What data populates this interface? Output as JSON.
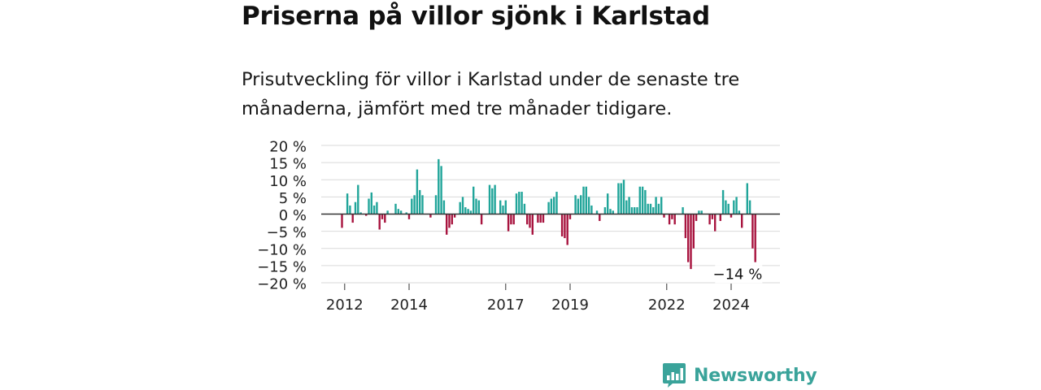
{
  "header": {
    "title": "Priserna på villor sjönk i Karlstad",
    "subtitle": "Prisutveckling för villor i Karlstad under de senaste tre månaderna, jämfört med tre månader tidigare."
  },
  "brand": {
    "name": "Newsworthy",
    "icon": "newsworthy-logo-icon",
    "color": "#3aa39a"
  },
  "colors": {
    "positive": "#21a59a",
    "negative": "#a8143f",
    "zero_line": "#333333",
    "grid": "#d9d9d9"
  },
  "chart_data": {
    "type": "bar",
    "unit": "%",
    "ylim": [
      -20,
      20
    ],
    "y_ticks": [
      {
        "value": 20,
        "label": "20 %"
      },
      {
        "value": 15,
        "label": "15 %"
      },
      {
        "value": 10,
        "label": "10 %"
      },
      {
        "value": 5,
        "label": "5 %"
      },
      {
        "value": 0,
        "label": "0 %"
      },
      {
        "value": -5,
        "label": "−5 %"
      },
      {
        "value": -10,
        "label": "−10 %"
      },
      {
        "value": -15,
        "label": "−15 %"
      },
      {
        "value": -20,
        "label": "−20 %"
      }
    ],
    "x_ticks": [
      {
        "index": 1,
        "label": "2012"
      },
      {
        "index": 25,
        "label": "2014"
      },
      {
        "index": 61,
        "label": "2017"
      },
      {
        "index": 85,
        "label": "2019"
      },
      {
        "index": 121,
        "label": "2022"
      },
      {
        "index": 145,
        "label": "2024"
      }
    ],
    "grid": true,
    "annotation": {
      "index": 156,
      "label": "−14 %"
    },
    "values": [
      -4,
      0,
      6,
      2.5,
      -2.5,
      3.5,
      8.5,
      0.5,
      0,
      -0.5,
      4.5,
      6.3,
      2.5,
      3.5,
      -4.5,
      -1.5,
      -2.5,
      1,
      0,
      0,
      3,
      1.5,
      1,
      0,
      0.5,
      -1.5,
      4.5,
      5.5,
      13,
      7,
      5.5,
      0,
      0,
      -1,
      0,
      5.5,
      16,
      14,
      4,
      -6,
      -4,
      -3,
      -1,
      0,
      3.5,
      5,
      2,
      1.5,
      1,
      8,
      4.5,
      4,
      -3,
      0,
      0,
      8.5,
      7.5,
      8.5,
      0,
      4,
      2.5,
      4,
      -5,
      -3,
      -3,
      6,
      6.5,
      6.5,
      3,
      -3,
      -4,
      -6,
      0,
      -2.5,
      -2.5,
      -2.5,
      0,
      3.5,
      4.5,
      5,
      6.5,
      0,
      -6.5,
      -7,
      -9,
      -1.5,
      0,
      5.5,
      4.5,
      5.5,
      8,
      8,
      5,
      2.5,
      0,
      1,
      -2,
      0,
      2,
      6,
      1.5,
      1,
      0,
      9,
      9,
      10,
      4,
      5,
      2,
      2,
      2,
      8,
      8,
      7,
      3,
      3,
      2,
      5,
      3,
      5,
      -1,
      0,
      -3,
      -1.5,
      -3,
      0,
      0,
      2,
      -7,
      -14,
      -16,
      -10,
      -2,
      1,
      1,
      0,
      0,
      -3,
      -1.5,
      -5,
      0,
      -2,
      7,
      4,
      3,
      -1,
      4,
      5,
      1,
      -4,
      0,
      9,
      4,
      -10,
      -14
    ]
  }
}
